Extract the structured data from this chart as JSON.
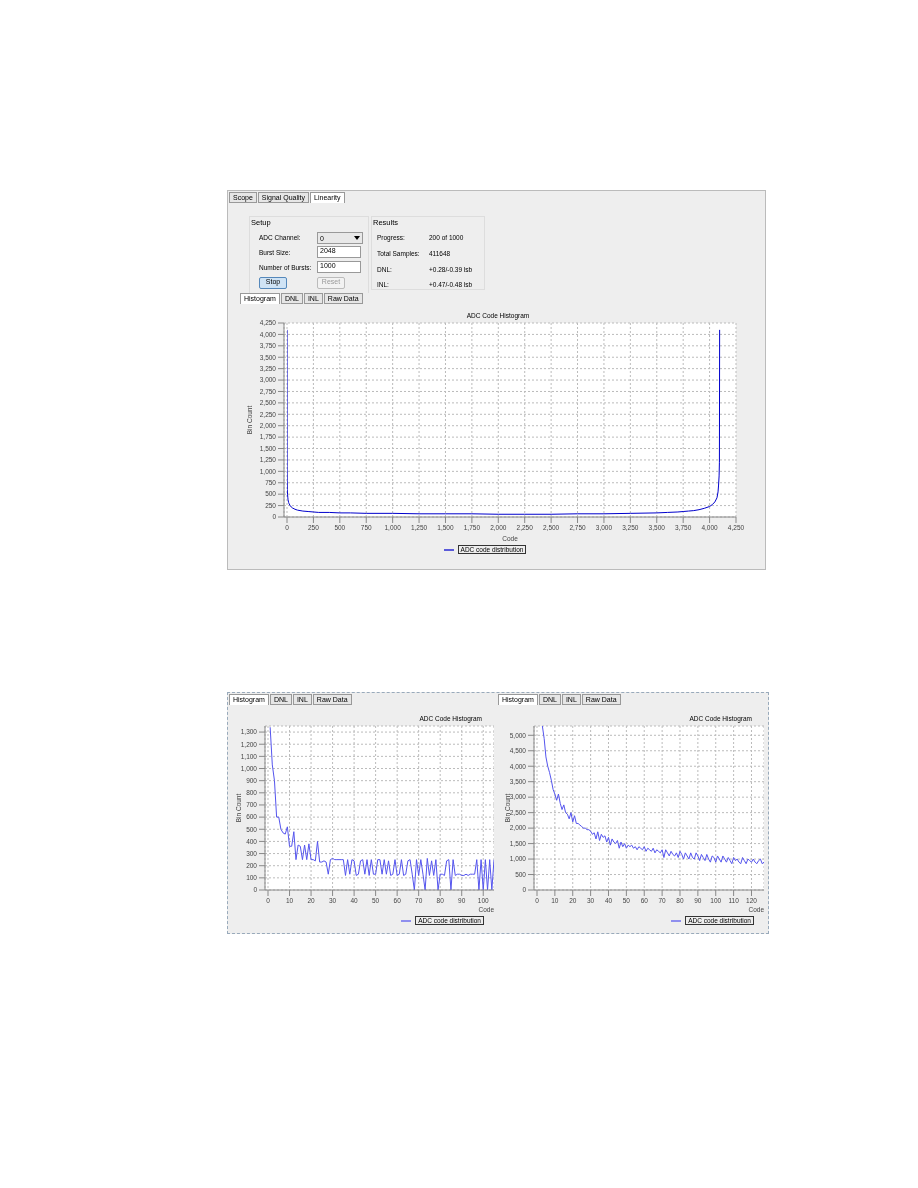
{
  "chart_data": [
    {
      "type": "other",
      "annotations": [
        "Scope",
        "Signal Quality",
        "Linearity",
        "Setup",
        "ADC Channel:",
        "0",
        "Burst Size:",
        "2048",
        "Number of Bursts:",
        "1000",
        "Stop",
        "Reset",
        "Results",
        "Progress:",
        "200 of 1000",
        "Total Samples:",
        "411648",
        "DNL:",
        "+0.28/-0.39 lsb",
        "INL:",
        "+0.47/-0.48 lsb"
      ]
    },
    {
      "type": "line",
      "title": "ADC Code Histogram",
      "xlabel": "Code",
      "ylabel": "Bin Count",
      "annotations": [
        "Histogram",
        "DNL",
        "INL",
        "Raw Data"
      ],
      "grid": true,
      "legend": "bottom",
      "xlim": [
        0,
        4250
      ],
      "xticks": [
        0,
        250,
        500,
        750,
        {
          "value": 1000,
          "label": "1,000"
        },
        {
          "value": 1250,
          "label": "1,250"
        },
        {
          "value": 1500,
          "label": "1,500"
        },
        {
          "value": 1750,
          "label": "1,750"
        },
        {
          "value": 2000,
          "label": "2,000"
        },
        {
          "value": 2250,
          "label": "2,250"
        },
        {
          "value": 2500,
          "label": "2,500"
        },
        {
          "value": 2750,
          "label": "2,750"
        },
        {
          "value": 3000,
          "label": "3,000"
        },
        {
          "value": 3250,
          "label": "3,250"
        },
        {
          "value": 3500,
          "label": "3,500"
        },
        {
          "value": 3750,
          "label": "3,750"
        },
        {
          "value": 4000,
          "label": "4,000"
        },
        {
          "value": 4250,
          "label": "4,250"
        }
      ],
      "ylim": [
        0,
        4250
      ],
      "yticks": [
        0,
        250,
        500,
        750,
        {
          "value": 1000,
          "label": "1,000"
        },
        {
          "value": 1250,
          "label": "1,250"
        },
        {
          "value": 1500,
          "label": "1,500"
        },
        {
          "value": 1750,
          "label": "1,750"
        },
        {
          "value": 2000,
          "label": "2,000"
        },
        {
          "value": 2250,
          "label": "2,250"
        },
        {
          "value": 2500,
          "label": "2,500"
        },
        {
          "value": 2750,
          "label": "2,750"
        },
        {
          "value": 3000,
          "label": "3,000"
        },
        {
          "value": 3250,
          "label": "3,250"
        },
        {
          "value": 3500,
          "label": "3,500"
        },
        {
          "value": 3750,
          "label": "3,750"
        },
        {
          "value": 4000,
          "label": "4,000"
        },
        {
          "value": 4250,
          "label": "4,250"
        }
      ],
      "x": [
        0,
        1,
        2,
        3,
        5,
        8,
        10,
        15,
        20,
        30,
        40,
        50,
        75,
        100,
        150,
        200,
        250,
        300,
        400,
        500,
        600,
        750,
        1000,
        1250,
        1500,
        1750,
        2000,
        2250,
        2500,
        2750,
        3000,
        3250,
        3500,
        3600,
        3700,
        3750,
        3800,
        3850,
        3900,
        3950,
        4000,
        4025,
        4050,
        4070,
        4080,
        4085,
        4090,
        4093,
        4095
      ],
      "series": [
        {
          "name": "ADC code distribution",
          "color": "#0000cc",
          "values": [
            4100,
            1100,
            800,
            600,
            500,
            420,
            380,
            320,
            290,
            250,
            220,
            200,
            170,
            150,
            130,
            120,
            110,
            100,
            100,
            90,
            90,
            80,
            80,
            70,
            70,
            70,
            60,
            60,
            60,
            70,
            70,
            80,
            90,
            100,
            110,
            120,
            130,
            140,
            160,
            190,
            230,
            270,
            330,
            420,
            550,
            700,
            900,
            1200,
            4100
          ]
        }
      ]
    },
    {
      "type": "line",
      "title": "ADC Code Histogram",
      "xlabel": "Code",
      "ylabel": "Bin Count",
      "annotations": [
        "Histogram",
        "DNL",
        "INL",
        "Raw Data"
      ],
      "grid": true,
      "legend": "bottom right",
      "xlim": [
        0,
        105
      ],
      "xticks": [
        0,
        10,
        20,
        30,
        40,
        50,
        60,
        70,
        80,
        90,
        100
      ],
      "ylim": [
        0,
        1350
      ],
      "yticks": [
        0,
        100,
        200,
        300,
        400,
        500,
        600,
        700,
        800,
        900,
        {
          "value": 1000,
          "label": "1,000"
        },
        {
          "value": 1100,
          "label": "1,100"
        },
        {
          "value": 1200,
          "label": "1,200"
        },
        {
          "value": 1300,
          "label": "1,300"
        }
      ],
      "x": [
        1,
        2,
        3,
        4,
        5,
        6,
        7,
        8,
        9,
        10,
        11,
        12,
        13,
        14,
        15,
        16,
        17,
        18,
        19,
        20,
        21,
        22,
        23,
        24,
        25,
        26,
        27,
        28,
        29,
        30,
        31,
        32,
        33,
        34,
        35,
        36,
        37,
        38,
        39,
        40,
        41,
        42,
        43,
        44,
        45,
        46,
        47,
        48,
        49,
        50,
        51,
        52,
        53,
        54,
        55,
        56,
        57,
        58,
        59,
        60,
        61,
        62,
        63,
        64,
        65,
        66,
        67,
        68,
        69,
        70,
        71,
        72,
        73,
        74,
        75,
        76,
        77,
        78,
        79,
        80,
        81,
        82,
        83,
        84,
        85,
        86,
        87,
        88,
        89,
        90,
        91,
        92,
        93,
        94,
        95,
        96,
        97,
        98,
        99,
        100,
        101,
        102,
        103,
        104,
        105
      ],
      "series": [
        {
          "name": "ADC code distribution",
          "color": "#5555ee",
          "values": [
            1340,
            1030,
            900,
            600,
            600,
            500,
            470,
            460,
            520,
            360,
            360,
            480,
            250,
            370,
            360,
            250,
            370,
            250,
            380,
            250,
            250,
            240,
            400,
            230,
            230,
            240,
            230,
            130,
            250,
            260,
            250,
            250,
            250,
            250,
            250,
            120,
            250,
            130,
            250,
            240,
            120,
            130,
            240,
            250,
            130,
            250,
            120,
            250,
            130,
            130,
            250,
            250,
            130,
            250,
            130,
            240,
            120,
            130,
            250,
            120,
            130,
            250,
            120,
            130,
            240,
            250,
            130,
            0,
            250,
            120,
            250,
            130,
            0,
            260,
            120,
            240,
            120,
            250,
            0,
            130,
            130,
            120,
            240,
            250,
            0,
            250,
            120,
            130,
            130,
            120,
            120,
            130,
            120,
            130,
            130,
            130,
            250,
            0,
            250,
            0,
            250,
            0,
            250,
            0,
            250
          ]
        }
      ]
    },
    {
      "type": "line",
      "title": "ADC Code Histogram",
      "xlabel": "Code",
      "ylabel": "Bin Count",
      "annotations": [
        "Histogram",
        "DNL",
        "INL",
        "Raw Data"
      ],
      "grid": true,
      "legend": "bottom right",
      "xlim": [
        0,
        127
      ],
      "xticks": [
        0,
        10,
        20,
        30,
        40,
        50,
        60,
        70,
        80,
        90,
        100,
        110,
        120
      ],
      "ylim": [
        0,
        5300
      ],
      "yticks": [
        0,
        500,
        {
          "value": 1000,
          "label": "1,000"
        },
        {
          "value": 1500,
          "label": "1,500"
        },
        {
          "value": 2000,
          "label": "2,000"
        },
        {
          "value": 2500,
          "label": "2,500"
        },
        {
          "value": 3000,
          "label": "3,000"
        },
        {
          "value": 3500,
          "label": "3,500"
        },
        {
          "value": 4000,
          "label": "4,000"
        },
        {
          "value": 4500,
          "label": "4,500"
        },
        {
          "value": 5000,
          "label": "5,000"
        }
      ],
      "x": [
        3,
        4,
        5,
        6,
        7,
        8,
        9,
        10,
        11,
        12,
        13,
        14,
        15,
        16,
        17,
        18,
        19,
        20,
        21,
        22,
        23,
        24,
        25,
        26,
        27,
        28,
        29,
        30,
        31,
        32,
        33,
        34,
        35,
        36,
        37,
        38,
        39,
        40,
        41,
        42,
        43,
        44,
        45,
        46,
        47,
        48,
        49,
        50,
        51,
        52,
        53,
        54,
        55,
        56,
        57,
        58,
        59,
        60,
        61,
        62,
        63,
        64,
        65,
        66,
        67,
        68,
        69,
        70,
        71,
        72,
        73,
        74,
        75,
        76,
        77,
        78,
        79,
        80,
        81,
        82,
        83,
        84,
        85,
        86,
        87,
        88,
        89,
        90,
        91,
        92,
        93,
        94,
        95,
        96,
        97,
        98,
        99,
        100,
        101,
        102,
        103,
        104,
        105,
        106,
        107,
        108,
        109,
        110,
        111,
        112,
        113,
        114,
        115,
        116,
        117,
        118,
        119,
        120,
        121,
        122,
        123,
        124,
        125,
        126,
        127
      ],
      "series": [
        {
          "name": "ADC code distribution",
          "color": "#5555ee",
          "values": [
            5300,
            4900,
            4300,
            4000,
            3800,
            3550,
            3250,
            3100,
            2900,
            3100,
            2800,
            2600,
            2750,
            2500,
            2450,
            2300,
            2500,
            2200,
            2400,
            2150,
            2150,
            2100,
            2050,
            2000,
            2000,
            1950,
            1950,
            1900,
            1800,
            1850,
            1650,
            1880,
            1600,
            1800,
            1700,
            1750,
            1550,
            1700,
            1450,
            1650,
            1550,
            1500,
            1600,
            1350,
            1550,
            1400,
            1500,
            1350,
            1450,
            1400,
            1450,
            1350,
            1400,
            1300,
            1400,
            1350,
            1300,
            1400,
            1250,
            1350,
            1300,
            1250,
            1350,
            1200,
            1300,
            1250,
            1200,
            1300,
            1050,
            1300,
            1200,
            1100,
            1250,
            1150,
            1100,
            1200,
            1050,
            1250,
            1150,
            1000,
            1200,
            1100,
            1000,
            1200,
            1050,
            1000,
            1200,
            1100,
            950,
            1150,
            1050,
            950,
            1150,
            1000,
            900,
            1100,
            1050,
            900,
            1100,
            1000,
            900,
            1100,
            1000,
            900,
            1050,
            950,
            850,
            1050,
            950,
            1000,
            900,
            850,
            1050,
            950,
            850,
            1000,
            950,
            900,
            1000,
            900,
            850,
            950,
            1000,
            850,
            900
          ]
        }
      ]
    }
  ]
}
